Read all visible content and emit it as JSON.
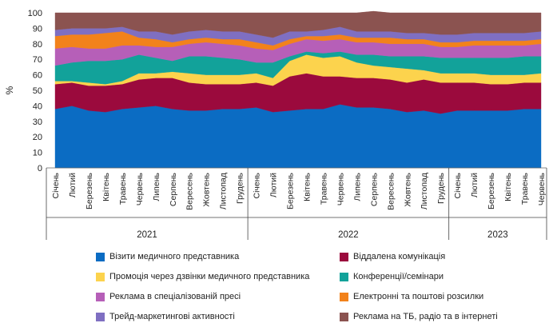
{
  "chart_data": {
    "type": "area",
    "stacked": true,
    "ylabel": "%",
    "ylim": [
      0,
      100
    ],
    "yticks": [
      0,
      10,
      20,
      30,
      40,
      50,
      60,
      70,
      80,
      90,
      100
    ],
    "grid": false,
    "legend_position": "bottom",
    "x": [
      "Січень",
      "Лютий",
      "Березень",
      "Квітень",
      "Травень",
      "Червень",
      "Липень",
      "Серпень",
      "Вересень",
      "Жовтень",
      "Листопад",
      "Грудень",
      "Січень",
      "Лютий",
      "Березень",
      "Квітень",
      "Травень",
      "Червень",
      "Липень",
      "Серпень",
      "Вересень",
      "Жовтень",
      "Листопад",
      "Грудень",
      "Січень",
      "Лютий",
      "Березень",
      "Квітень",
      "Травень",
      "Червень"
    ],
    "years": [
      {
        "label": "2021",
        "start": 0,
        "end": 11
      },
      {
        "label": "2022",
        "start": 12,
        "end": 23
      },
      {
        "label": "2023",
        "start": 24,
        "end": 29
      }
    ],
    "series": [
      {
        "name": "Візити медичного представника",
        "color": "#0b6cc3",
        "values": [
          38,
          40,
          37,
          36,
          38,
          39,
          40,
          38,
          37,
          37,
          38,
          38,
          39,
          36,
          37,
          38,
          38,
          41,
          39,
          39,
          38,
          36,
          37,
          35,
          37,
          37,
          37,
          37,
          38,
          38
        ]
      },
      {
        "name": "Віддалена комунікація",
        "color": "#9b0a3d",
        "values": [
          16,
          15,
          16,
          17,
          16,
          18,
          18,
          20,
          18,
          17,
          16,
          16,
          16,
          17,
          22,
          23,
          21,
          18,
          19,
          19,
          19,
          19,
          20,
          20,
          18,
          18,
          17,
          17,
          17,
          17
        ]
      },
      {
        "name": "Промоція через дзвінки медичного представника",
        "color": "#fcd34d",
        "values": [
          2,
          1,
          2,
          1,
          2,
          4,
          3,
          4,
          6,
          6,
          6,
          6,
          6,
          5,
          10,
          12,
          12,
          13,
          10,
          8,
          8,
          9,
          6,
          6,
          6,
          6,
          6,
          6,
          5,
          6
        ]
      },
      {
        "name": "Конференції/семінари",
        "color": "#12a29a",
        "values": [
          10,
          12,
          14,
          15,
          14,
          12,
          10,
          7,
          11,
          12,
          11,
          10,
          7,
          10,
          3,
          2,
          3,
          3,
          5,
          7,
          7,
          8,
          9,
          10,
          10,
          10,
          11,
          11,
          12,
          11
        ]
      },
      {
        "name": "Реклама в спеціалізованій пресі",
        "color": "#b65fb8",
        "values": [
          11,
          10,
          8,
          8,
          9,
          6,
          7,
          9,
          8,
          9,
          9,
          9,
          9,
          8,
          8,
          8,
          8,
          8,
          8,
          8,
          8,
          8,
          8,
          7,
          7,
          8,
          8,
          8,
          7,
          8
        ]
      },
      {
        "name": "Електронні та поштові розсилки",
        "color": "#f2821b",
        "values": [
          8,
          8,
          9,
          10,
          9,
          5,
          5,
          3,
          3,
          3,
          3,
          4,
          4,
          3,
          3,
          2,
          3,
          3,
          3,
          3,
          4,
          3,
          3,
          3,
          3,
          3,
          3,
          3,
          3,
          3
        ]
      },
      {
        "name": "Трейд-маркетингові активності",
        "color": "#7f6fc2",
        "values": [
          4,
          4,
          4,
          3,
          3,
          4,
          5,
          5,
          5,
          5,
          5,
          5,
          5,
          5,
          5,
          3,
          4,
          5,
          4,
          4,
          4,
          4,
          4,
          5,
          5,
          5,
          5,
          5,
          5,
          5
        ]
      },
      {
        "name": "Реклама на ТБ, радіо та в інтернеті",
        "color": "#8b5350",
        "values": [
          11,
          10,
          10,
          10,
          9,
          12,
          12,
          14,
          12,
          11,
          12,
          12,
          14,
          16,
          12,
          12,
          11,
          9,
          12,
          13,
          12,
          13,
          13,
          14,
          14,
          13,
          13,
          13,
          13,
          12
        ]
      }
    ]
  }
}
